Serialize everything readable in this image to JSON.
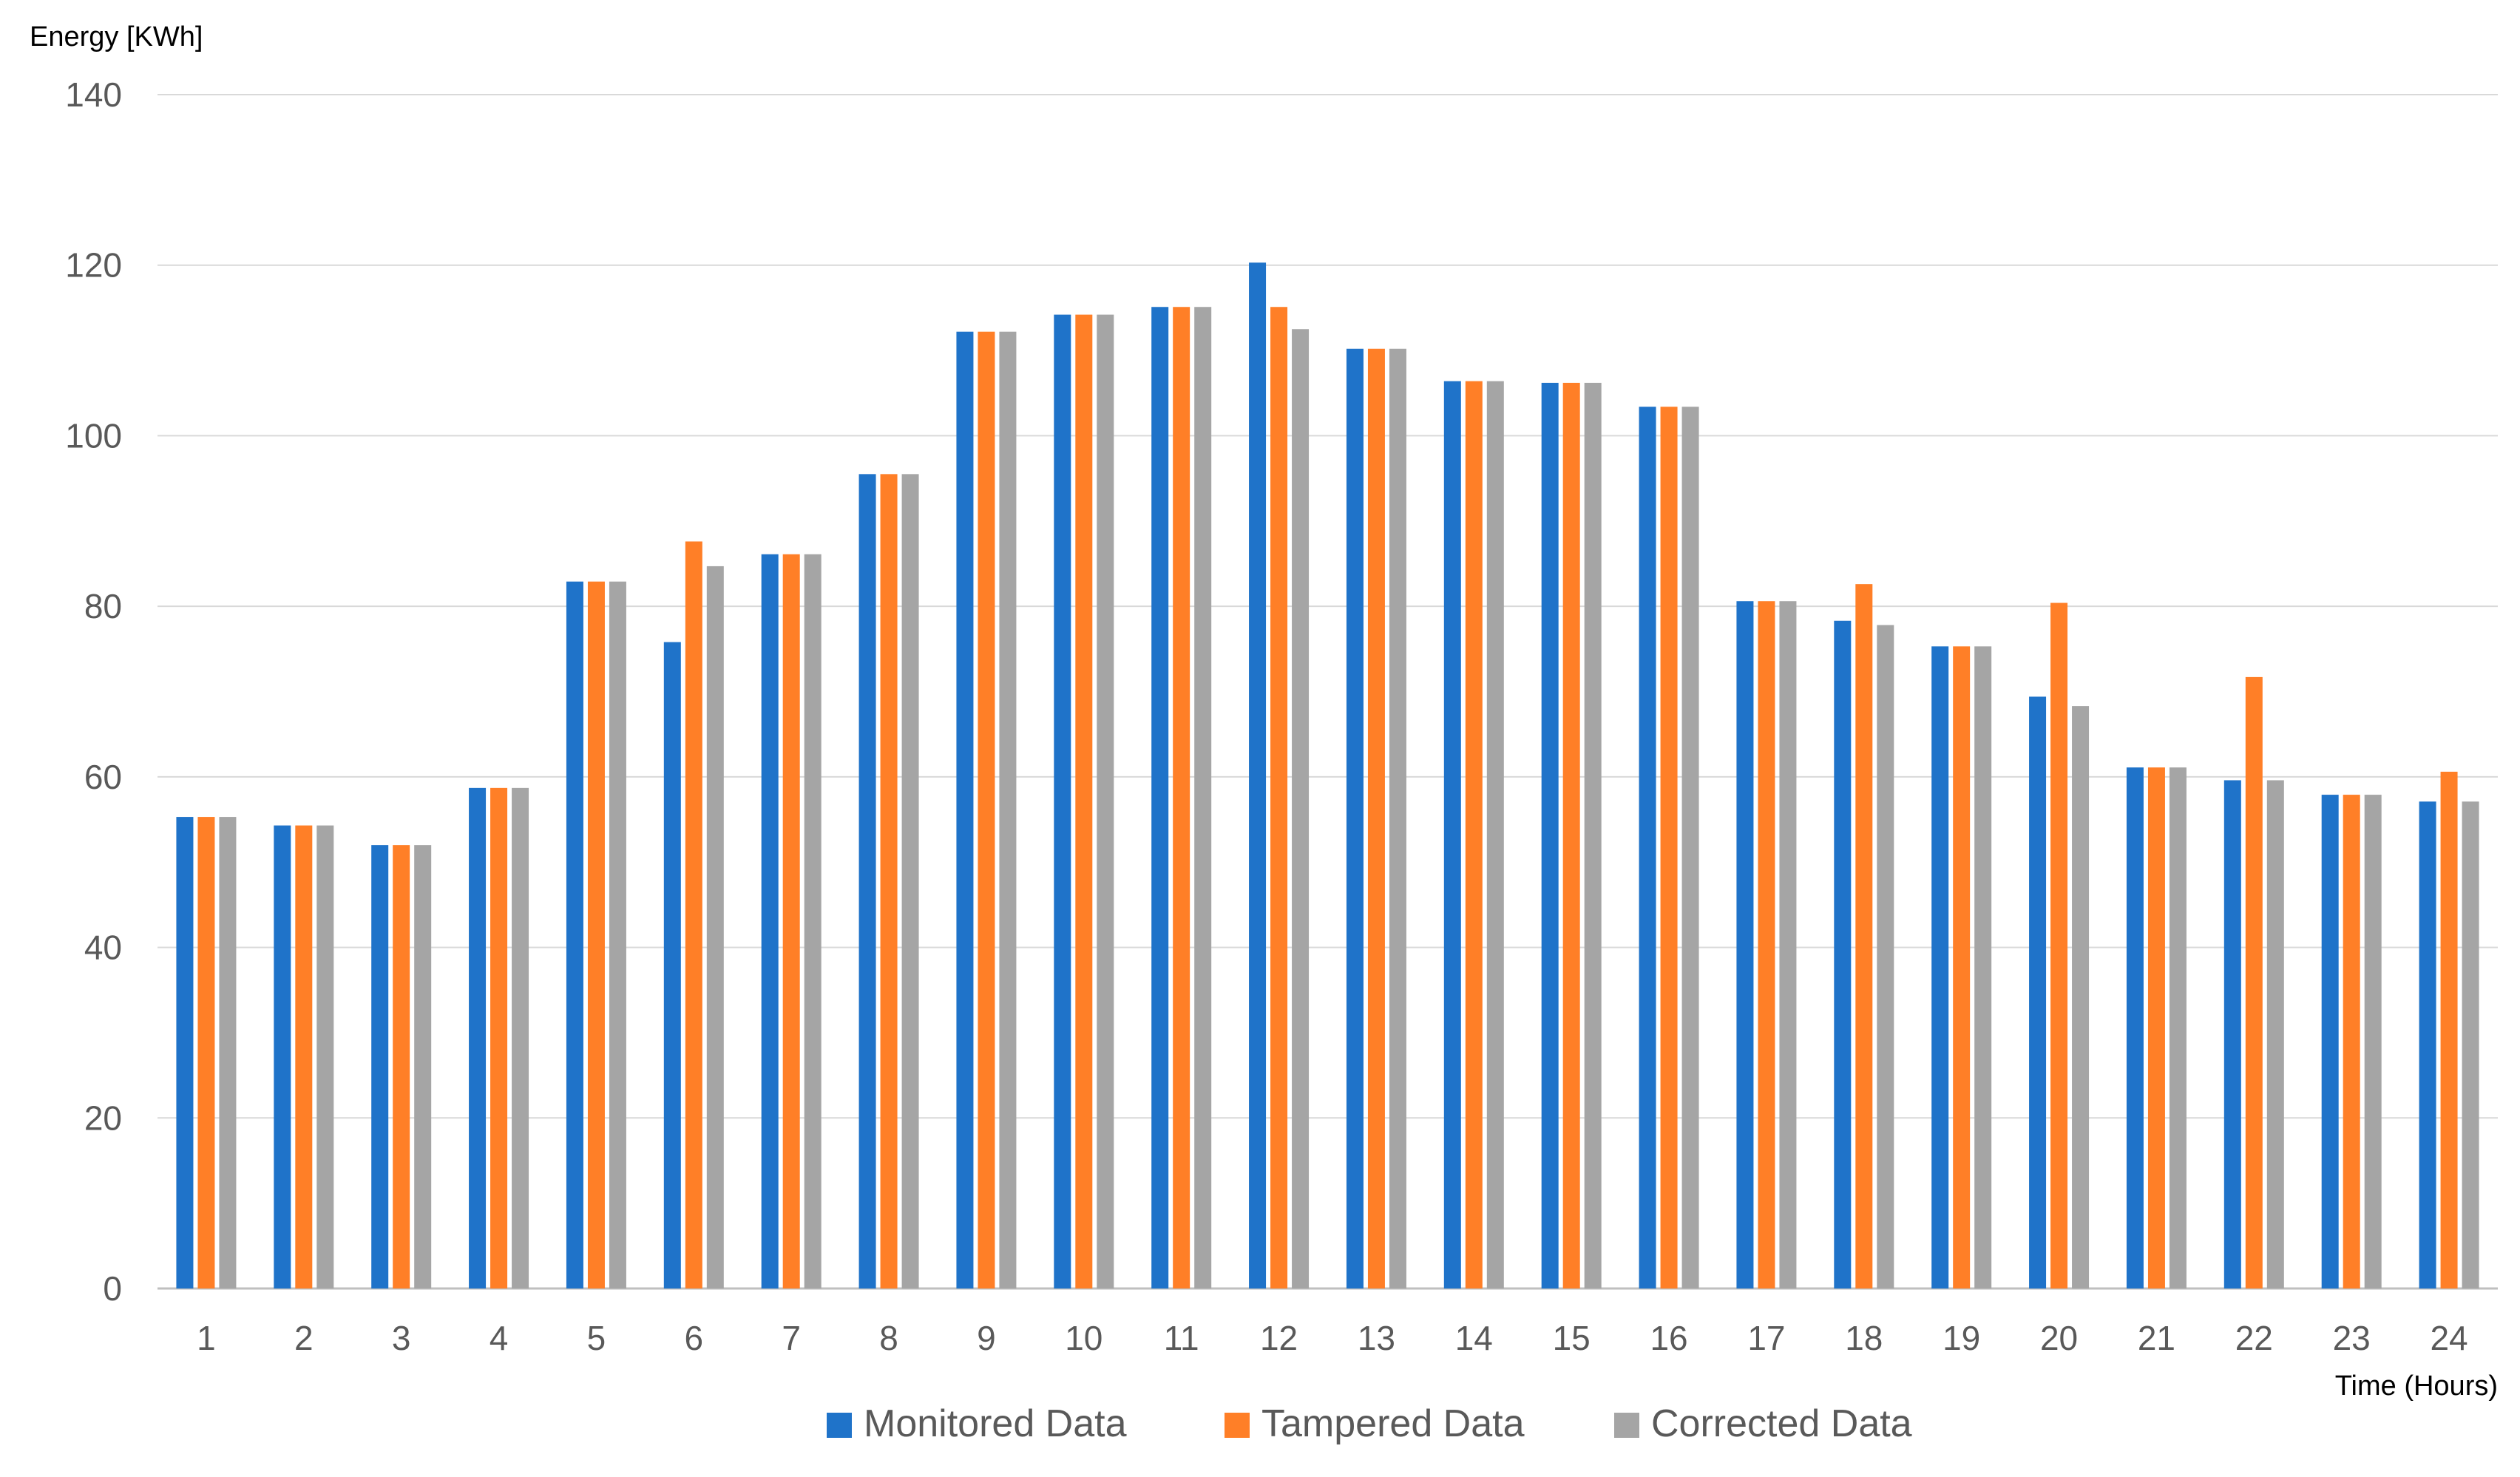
{
  "chart_data": {
    "type": "bar",
    "ylabel": "Energy [KWh]",
    "xlabel": "Time (Hours)",
    "ylim": [
      0,
      140
    ],
    "yticks": [
      0,
      20,
      40,
      60,
      80,
      100,
      120,
      140
    ],
    "grid": true,
    "legend_position": "bottom",
    "categories": [
      "1",
      "2",
      "3",
      "4",
      "5",
      "6",
      "7",
      "8",
      "9",
      "10",
      "11",
      "12",
      "13",
      "14",
      "15",
      "16",
      "17",
      "18",
      "19",
      "20",
      "21",
      "22",
      "23",
      "24"
    ],
    "series": [
      {
        "name": "Monitored Data",
        "color": "#1f73c9",
        "values": [
          55.3,
          54.3,
          52.0,
          58.7,
          82.9,
          75.8,
          86.1,
          95.5,
          112.2,
          114.2,
          115.1,
          120.3,
          110.2,
          106.4,
          106.2,
          103.4,
          80.6,
          78.3,
          75.3,
          69.4,
          61.1,
          59.6,
          57.9,
          57.1
        ]
      },
      {
        "name": "Tampered Data",
        "color": "#ff7f27",
        "values": [
          55.3,
          54.3,
          52.0,
          58.7,
          82.9,
          87.6,
          86.1,
          95.5,
          112.2,
          114.2,
          115.1,
          115.1,
          110.2,
          106.4,
          106.2,
          103.4,
          80.6,
          82.6,
          75.3,
          80.4,
          61.1,
          71.7,
          57.9,
          60.6
        ]
      },
      {
        "name": "Corrected Data",
        "color": "#a5a5a5",
        "values": [
          55.3,
          54.3,
          52.0,
          58.7,
          82.9,
          84.7,
          86.1,
          95.5,
          112.2,
          114.2,
          115.1,
          112.5,
          110.2,
          106.4,
          106.2,
          103.4,
          80.6,
          77.8,
          75.3,
          68.3,
          61.1,
          59.6,
          57.9,
          57.1
        ]
      }
    ]
  }
}
